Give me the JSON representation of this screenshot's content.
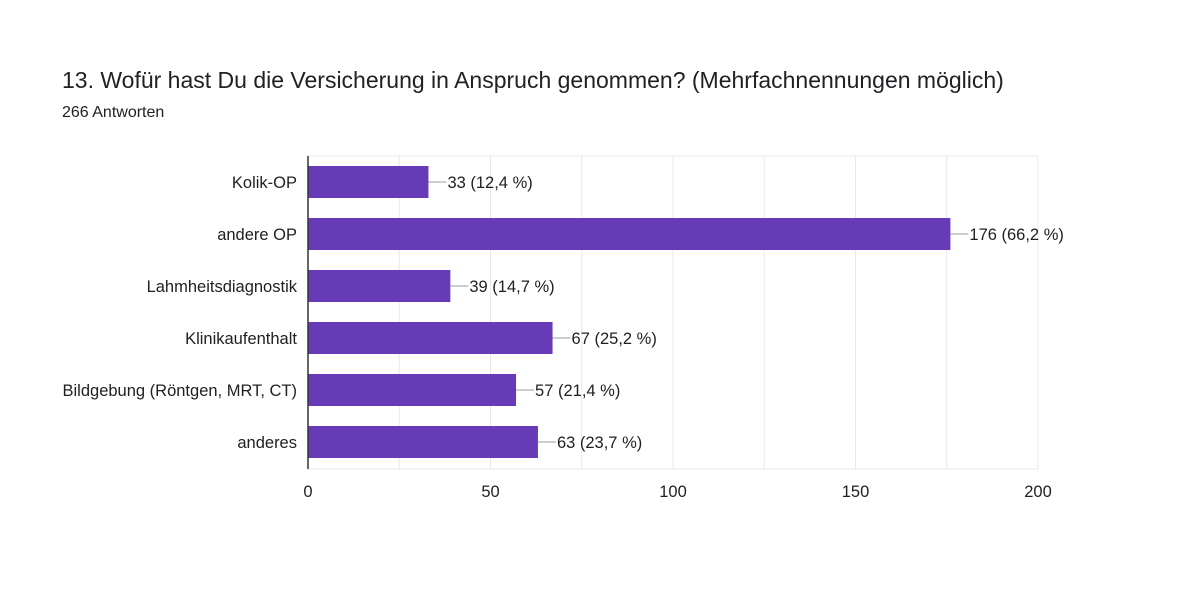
{
  "question": {
    "title": "13. Wofür hast Du die Versicherung in Anspruch genommen? (Mehrfachnennungen möglich)",
    "response_count": "266 Antworten"
  },
  "colors": {
    "bar": "#673ab7",
    "grid": "#e8e8e8",
    "axis": "#333333",
    "leader": "#9e9e9e"
  },
  "chart_data": {
    "type": "bar",
    "orientation": "horizontal",
    "categories": [
      "Kolik-OP",
      "andere OP",
      "Lahmheitsdiagnostik",
      "Klinikaufenthalt",
      "Bildgebung (Röntgen, MRT, CT)",
      "anderes"
    ],
    "values": [
      33,
      176,
      39,
      67,
      57,
      63
    ],
    "data_labels": [
      "33 (12,4 %)",
      "176 (66,2 %)",
      "39 (14,7 %)",
      "67 (25,2 %)",
      "57 (21,4 %)",
      "63 (23,7 %)"
    ],
    "xlim": [
      0,
      200
    ],
    "xticks": [
      0,
      50,
      100,
      150,
      200
    ],
    "xtick_labels": [
      "0",
      "50",
      "100",
      "150",
      "200"
    ],
    "grid": true,
    "legend": "none"
  }
}
